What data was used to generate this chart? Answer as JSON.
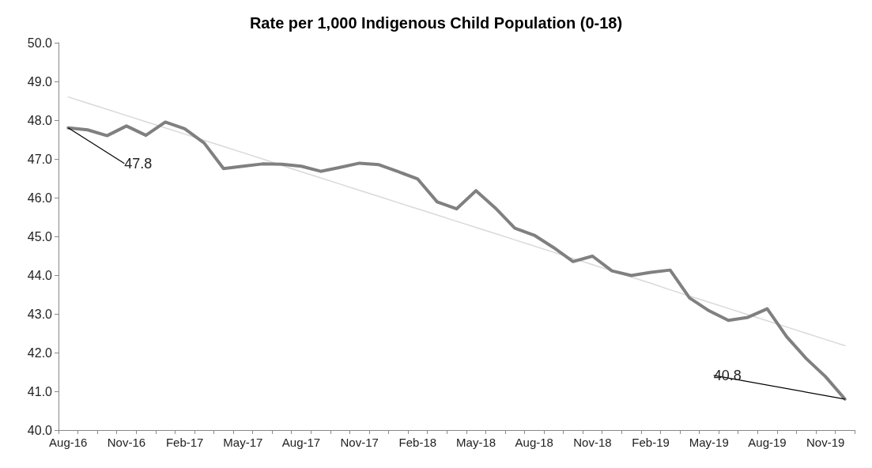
{
  "chart_data": {
    "type": "line",
    "title": "Rate per 1,000 Indigenous Child Population (0-18)",
    "categories": [
      "Aug-16",
      null,
      null,
      "Nov-16",
      null,
      null,
      "Feb-17",
      null,
      null,
      "May-17",
      null,
      null,
      "Aug-17",
      null,
      null,
      "Nov-17",
      null,
      null,
      "Feb-18",
      null,
      null,
      "May-18",
      null,
      null,
      "Aug-18",
      null,
      null,
      "Nov-18",
      null,
      null,
      "Feb-19",
      null,
      null,
      "May-19",
      null,
      null,
      "Aug-19",
      null,
      null,
      "Nov-19",
      null
    ],
    "series": [
      {
        "color": "#808080",
        "line_style": "solid",
        "values": [
          47.8,
          47.75,
          47.6,
          47.85,
          47.61,
          47.95,
          47.78,
          47.41,
          46.75,
          46.81,
          46.87,
          46.86,
          46.81,
          46.68,
          46.78,
          46.89,
          46.85,
          46.67,
          46.48,
          45.89,
          45.71,
          46.18,
          45.73,
          45.21,
          45.03,
          44.71,
          44.35,
          44.49,
          44.11,
          43.99,
          44.07,
          44.13,
          43.41,
          43.08,
          42.83,
          42.91,
          43.13,
          42.41,
          41.85,
          41.38,
          40.8
        ],
        "value_labels": [
          "47.8",
          null,
          null,
          null,
          null,
          null,
          null,
          null,
          null,
          null,
          null,
          null,
          null,
          null,
          null,
          null,
          null,
          null,
          null,
          null,
          null,
          null,
          null,
          null,
          null,
          null,
          null,
          null,
          null,
          null,
          null,
          null,
          null,
          null,
          null,
          null,
          null,
          null,
          null,
          null,
          "40.8"
        ]
      },
      {
        "color": "#d9d9d9",
        "line_style": "solid",
        "values": [
          48.6,
          48.44,
          48.28,
          48.12,
          47.96,
          47.8,
          47.64,
          47.48,
          47.32,
          47.16,
          47.0,
          46.83,
          46.67,
          46.51,
          46.35,
          46.19,
          46.03,
          45.87,
          45.71,
          45.55,
          45.39,
          45.23,
          45.07,
          44.91,
          44.75,
          44.59,
          44.43,
          44.27,
          44.11,
          43.95,
          43.79,
          43.62,
          43.46,
          43.3,
          43.14,
          42.98,
          42.82,
          42.66,
          42.5,
          42.34,
          42.18
        ]
      }
    ],
    "ylim": [
      40,
      50
    ],
    "yticks": [
      {
        "value": 40,
        "label": "40.0"
      },
      {
        "value": 41,
        "label": "41.0"
      },
      {
        "value": 42,
        "label": "42.0"
      },
      {
        "value": 43,
        "label": "43.0"
      },
      {
        "value": 44,
        "label": "44.0"
      },
      {
        "value": 45,
        "label": "45.0"
      },
      {
        "value": 46,
        "label": "46.0"
      },
      {
        "value": 47,
        "label": "47.0"
      },
      {
        "value": 48,
        "label": "48.0"
      },
      {
        "value": 49,
        "label": "49.0"
      },
      {
        "value": 50,
        "label": "50.0"
      }
    ],
    "grid": false,
    "marker": "none"
  }
}
